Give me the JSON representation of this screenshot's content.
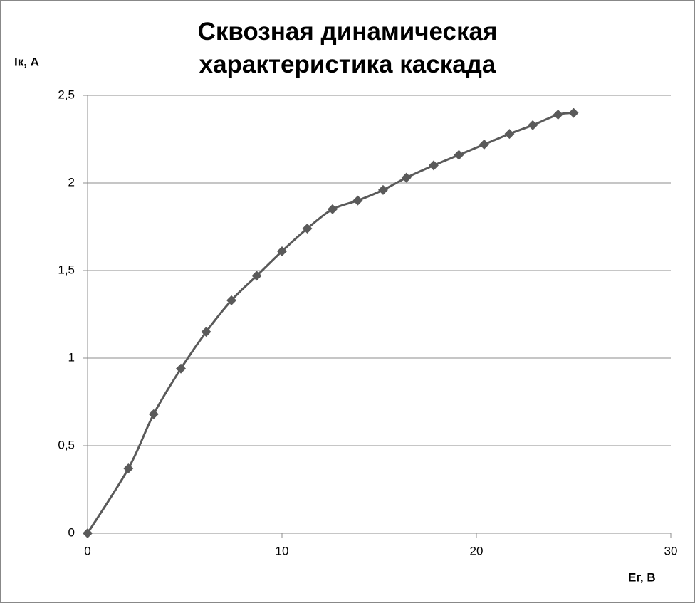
{
  "chart_data": {
    "type": "scatter",
    "title": "Сквозная динамическая характеристика каскада",
    "y_label": "Iк, А",
    "x_label": "Eг, В",
    "series": [
      {
        "color": "#5a5a5a",
        "x": [
          0,
          2.1,
          3.4,
          4.8,
          6.1,
          7.4,
          8.7,
          10,
          11.3,
          12.6,
          13.9,
          15.2,
          16.4,
          17.8,
          19.1,
          20.4,
          21.7,
          22.9,
          24.2,
          25
        ],
        "values": [
          0,
          0.37,
          0.68,
          0.94,
          1.15,
          1.33,
          1.47,
          1.61,
          1.74,
          1.85,
          1.9,
          1.96,
          2.03,
          2.1,
          2.16,
          2.22,
          2.28,
          2.33,
          2.39,
          2.4
        ]
      }
    ],
    "xlim": [
      0,
      30
    ],
    "xticks": [
      0,
      10,
      20,
      30
    ],
    "ylim": [
      0,
      2.5
    ],
    "yticks": [
      0,
      {
        "value": 0.5,
        "label": "0,5"
      },
      1,
      {
        "value": 1.5,
        "label": "1,5"
      },
      2,
      {
        "value": 2.5,
        "label": "2,5"
      }
    ],
    "grid": true,
    "smooth": true,
    "marker": "diamond"
  }
}
